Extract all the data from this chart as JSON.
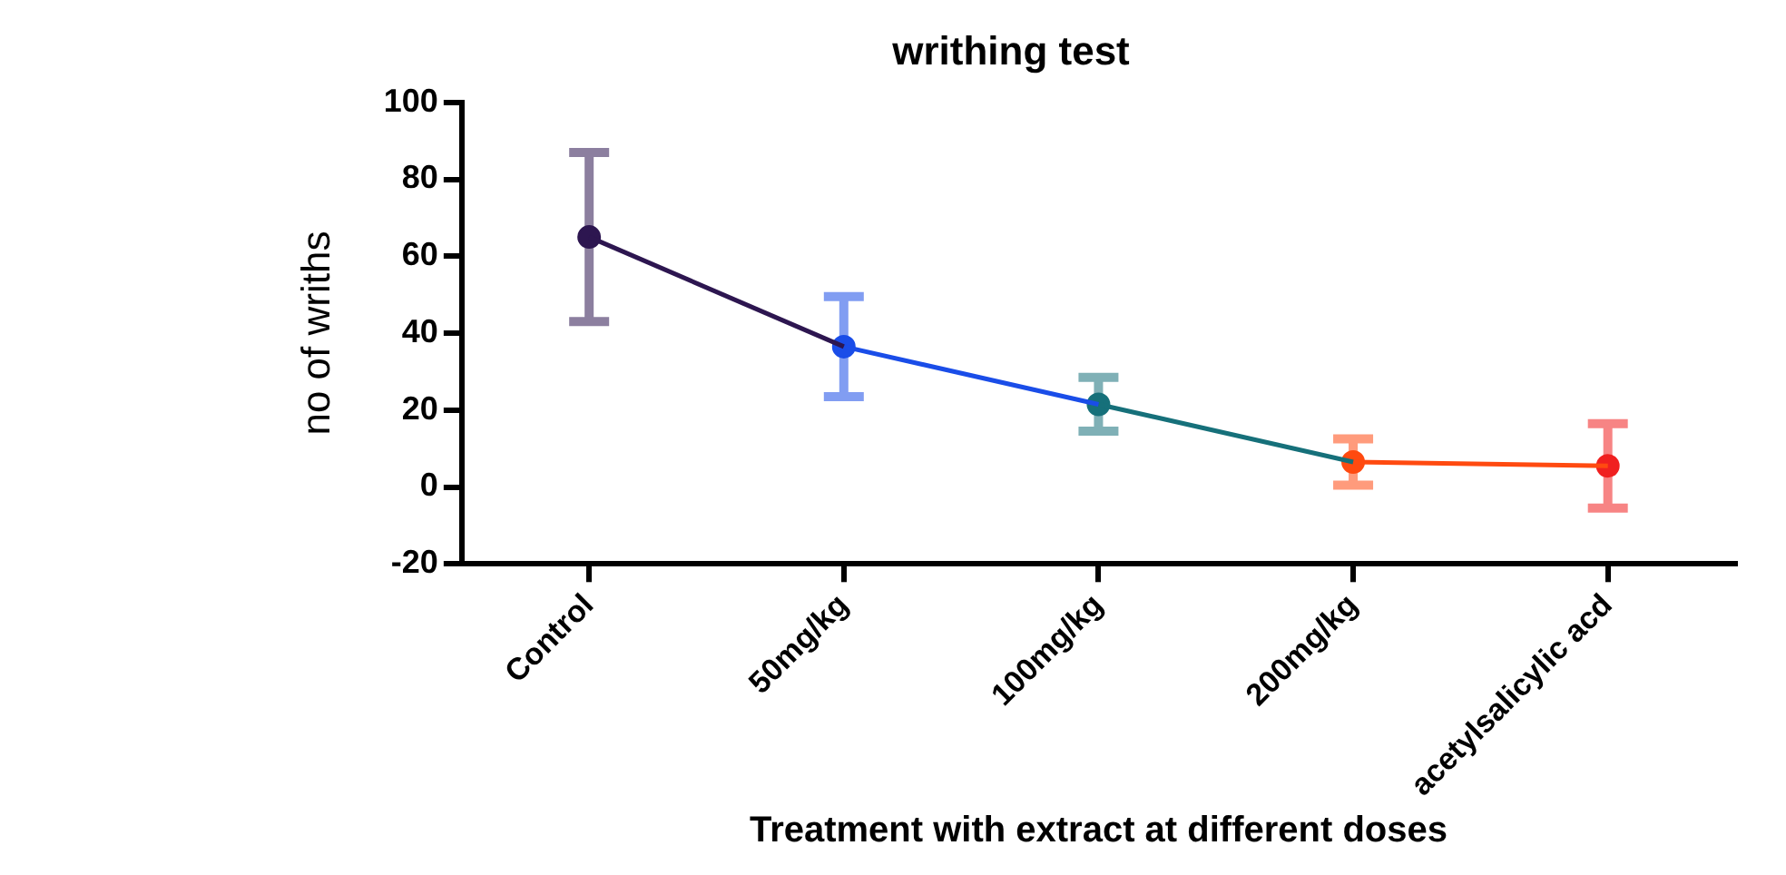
{
  "chart_data": {
    "type": "line",
    "title": "writhing test",
    "xlabel": "Treatment with extract at different doses",
    "ylabel": "no of wriths",
    "categories": [
      "Control",
      "50mg/kg",
      "100mg/kg",
      "200mg/kg",
      "acetylsalicylic acd"
    ],
    "series": [
      {
        "color": "#2d1650",
        "values": [
          65,
          36.5,
          null,
          null,
          null
        ],
        "marker": "none"
      },
      {
        "color": "#1a4de8",
        "values": [
          null,
          36.5,
          21.5,
          null,
          null
        ],
        "marker": "none"
      },
      {
        "color": "#16707a",
        "values": [
          null,
          null,
          21.5,
          6.5,
          null
        ],
        "marker": "none"
      },
      {
        "color": "#ff4a10",
        "values": [
          null,
          null,
          null,
          6.5,
          5.5
        ],
        "marker": "none"
      },
      {
        "type": "scatter",
        "values": [
          65,
          36.5,
          21.5,
          6.5,
          5.5
        ],
        "errors": [
          22,
          13,
          7,
          6,
          11
        ],
        "colors": [
          "#2d1650",
          "#1a4de8",
          "#16707a",
          "#ff4a10",
          "#f02020"
        ],
        "marker": "circle"
      }
    ],
    "ylim": [
      -20,
      100
    ],
    "yticks": [
      -20,
      0,
      20,
      40,
      60,
      80,
      100
    ],
    "grid": false,
    "legend": false,
    "line_style": "solid"
  }
}
